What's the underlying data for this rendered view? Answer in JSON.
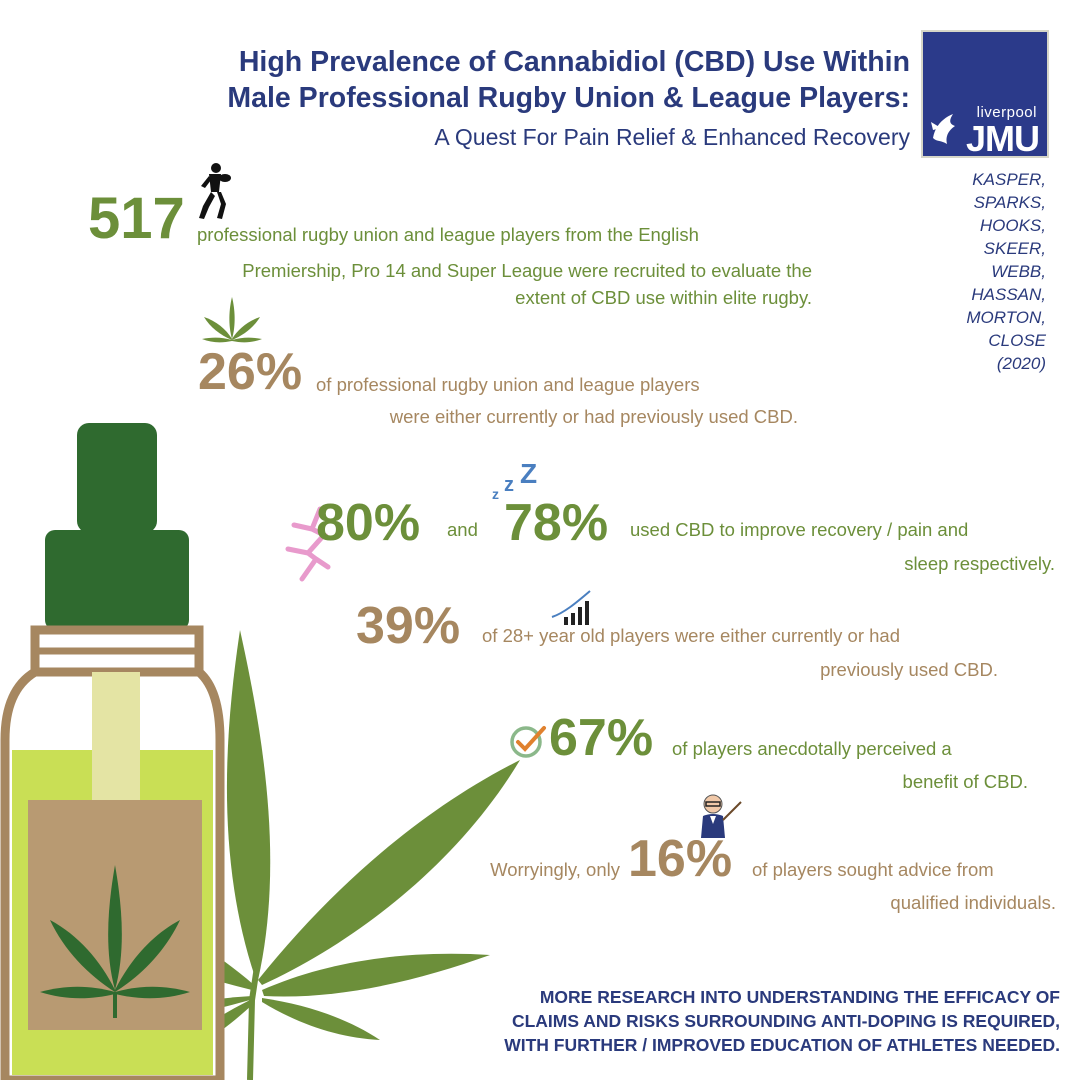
{
  "header": {
    "title_line1": "High Prevalence of Cannabidiol (CBD) Use Within",
    "title_line2": "Male Professional Rugby Union & League Players:",
    "subtitle": "A Quest For Pain Relief & Enhanced Recovery"
  },
  "logo": {
    "small": "liverpool",
    "big": "JMU"
  },
  "authors": [
    "KASPER,",
    "SPARKS,",
    "HOOKS,",
    "SKEER,",
    "WEBB,",
    "HASSAN,",
    "MORTON,",
    "CLOSE",
    "(2020)"
  ],
  "stats": {
    "s517": {
      "value": "517",
      "line1": "professional rugby union and league players from the English",
      "line2": "Premiership, Pro 14 and Super League were recruited to evaluate the",
      "line3": "extent of CBD use within elite rugby."
    },
    "s26": {
      "value": "26%",
      "line1": "of professional rugby union and league players",
      "line2": "were either currently or had previously used CBD."
    },
    "s80": {
      "value1": "80%",
      "and": "and",
      "value2": "78%",
      "line1": "used CBD to improve recovery / pain and",
      "line2": "sleep respectively."
    },
    "s39": {
      "value": "39%",
      "line1": "of 28+ year old players were either currently or had",
      "line2": "previously used CBD."
    },
    "s67": {
      "value": "67%",
      "line1": "of players anecdotally perceived a",
      "line2": "benefit of CBD."
    },
    "s16": {
      "prefix": "Worryingly, only",
      "value": "16%",
      "line1": "of players sought advice from",
      "line2": "qualified individuals."
    }
  },
  "conclusion": {
    "line1": "MORE RESEARCH INTO UNDERSTANDING THE EFFICACY OF",
    "line2": "CLAIMS AND RISKS SURROUNDING ANTI-DOPING IS REQUIRED,",
    "line3": "WITH FURTHER / IMPROVED EDUCATION OF ATHLETES NEEDED."
  },
  "colors": {
    "navy": "#2a3a7c",
    "green": "#6c8f3a",
    "tan": "#a68760",
    "logo_bg": "#2b3a8a"
  },
  "icons": [
    "rugby-player-icon",
    "cannabis-leaf-icon",
    "lightning-icon",
    "sleep-zzz-icon",
    "bar-chart-icon",
    "check-circle-icon",
    "professor-icon",
    "cbd-bottle-illustration",
    "large-cannabis-leaf-illustration"
  ]
}
